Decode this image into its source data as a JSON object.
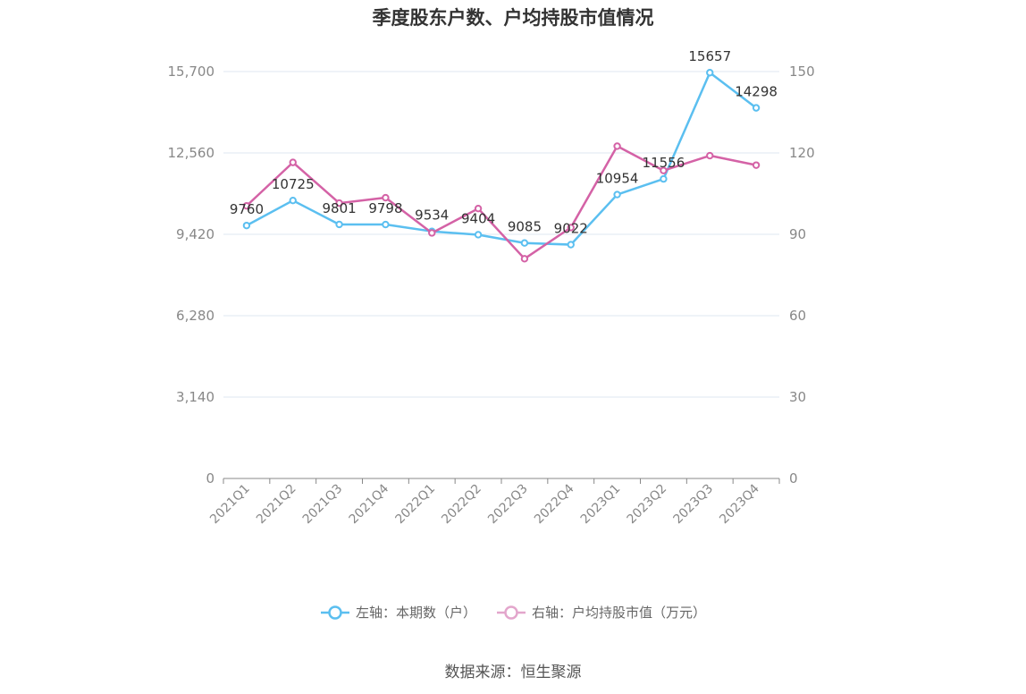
{
  "chart_data": {
    "type": "line",
    "title": "季度股东户数、户均持股市值情况",
    "categories": [
      "2021Q1",
      "2021Q2",
      "2021Q3",
      "2021Q4",
      "2022Q1",
      "2022Q2",
      "2022Q3",
      "2022Q4",
      "2023Q1",
      "2023Q2",
      "2023Q3",
      "2023Q4"
    ],
    "y_left": {
      "ticks": [
        "0",
        "3,140",
        "6,280",
        "9,420",
        "12,560",
        "15,700"
      ],
      "range": [
        0,
        15700
      ]
    },
    "y_right": {
      "ticks": [
        "0",
        "30",
        "60",
        "90",
        "120",
        "150"
      ],
      "range": [
        0,
        150
      ]
    },
    "grid": true,
    "legend_position": "bottom-center",
    "series": [
      {
        "name": "左轴：本期数（户）",
        "axis": "left",
        "color": "#5bbff0",
        "values": [
          9760,
          10725,
          9801,
          9798,
          9534,
          9404,
          9085,
          9022,
          10954,
          11556,
          15657,
          14298
        ],
        "labels": [
          "9760",
          "10725",
          "9801",
          "9798",
          "9534",
          "9404",
          "9085",
          "9022",
          "10954",
          "11556",
          "15657",
          "14298"
        ]
      },
      {
        "name": "右轴：户均持股市值（万元）",
        "axis": "right",
        "color": "#d462a6",
        "values": [
          100.5,
          116.5,
          101.5,
          103.5,
          90.5,
          99.5,
          81,
          92.5,
          122.5,
          113.5,
          119,
          115.5
        ]
      }
    ]
  },
  "source": "数据来源：恒生聚源"
}
